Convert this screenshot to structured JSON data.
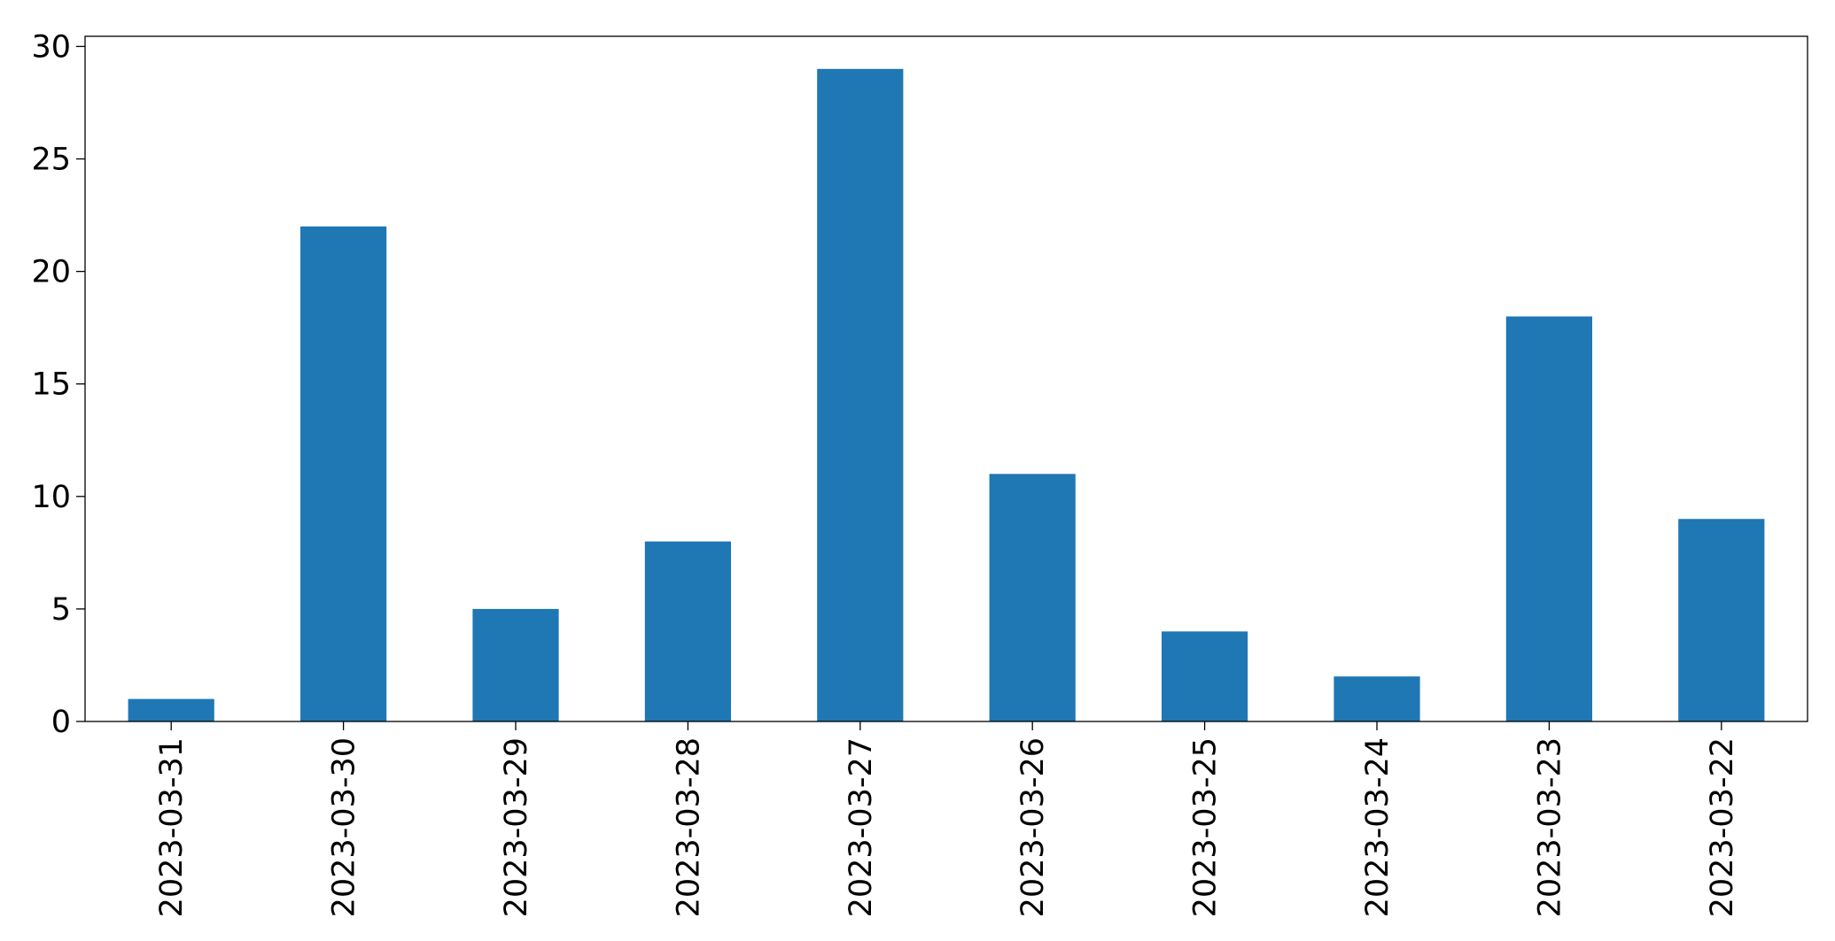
{
  "chart_data": {
    "type": "bar",
    "categories": [
      "2023-03-31",
      "2023-03-30",
      "2023-03-29",
      "2023-03-28",
      "2023-03-27",
      "2023-03-26",
      "2023-03-25",
      "2023-03-24",
      "2023-03-23",
      "2023-03-22"
    ],
    "values": [
      1,
      22,
      5,
      8,
      29,
      11,
      4,
      2,
      18,
      9
    ],
    "color": "#1f77b4",
    "ylim": [
      0,
      30.45
    ],
    "yticks": [
      0,
      5,
      10,
      15,
      20,
      25,
      30
    ],
    "grid": false
  }
}
